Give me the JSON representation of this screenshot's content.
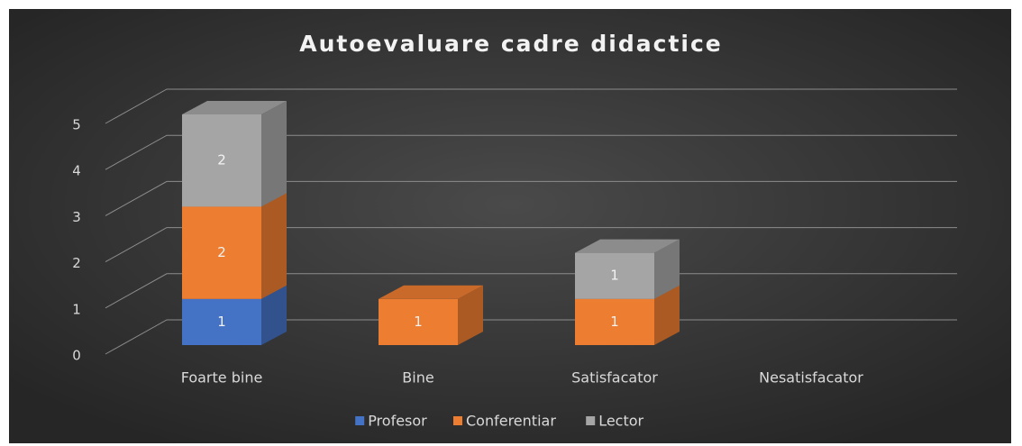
{
  "chart_data": {
    "type": "bar3d_stacked",
    "title": "Autoevaluare cadre didactice",
    "categories": [
      "Foarte bine",
      "Bine",
      "Satisfacator",
      "Nesatisfacator"
    ],
    "series": [
      {
        "name": "Profesor",
        "color": "#4472c4",
        "values": [
          1,
          0,
          0,
          0
        ]
      },
      {
        "name": "Conferentiar",
        "color": "#ed7d31",
        "values": [
          2,
          1,
          1,
          0
        ]
      },
      {
        "name": "Lector",
        "color": "#a5a5a5",
        "values": [
          2,
          0,
          1,
          0
        ]
      }
    ],
    "ylim": [
      0,
      5
    ],
    "yticks": [
      0,
      1,
      2,
      3,
      4,
      5
    ],
    "grid": true,
    "legend": "bottom"
  }
}
